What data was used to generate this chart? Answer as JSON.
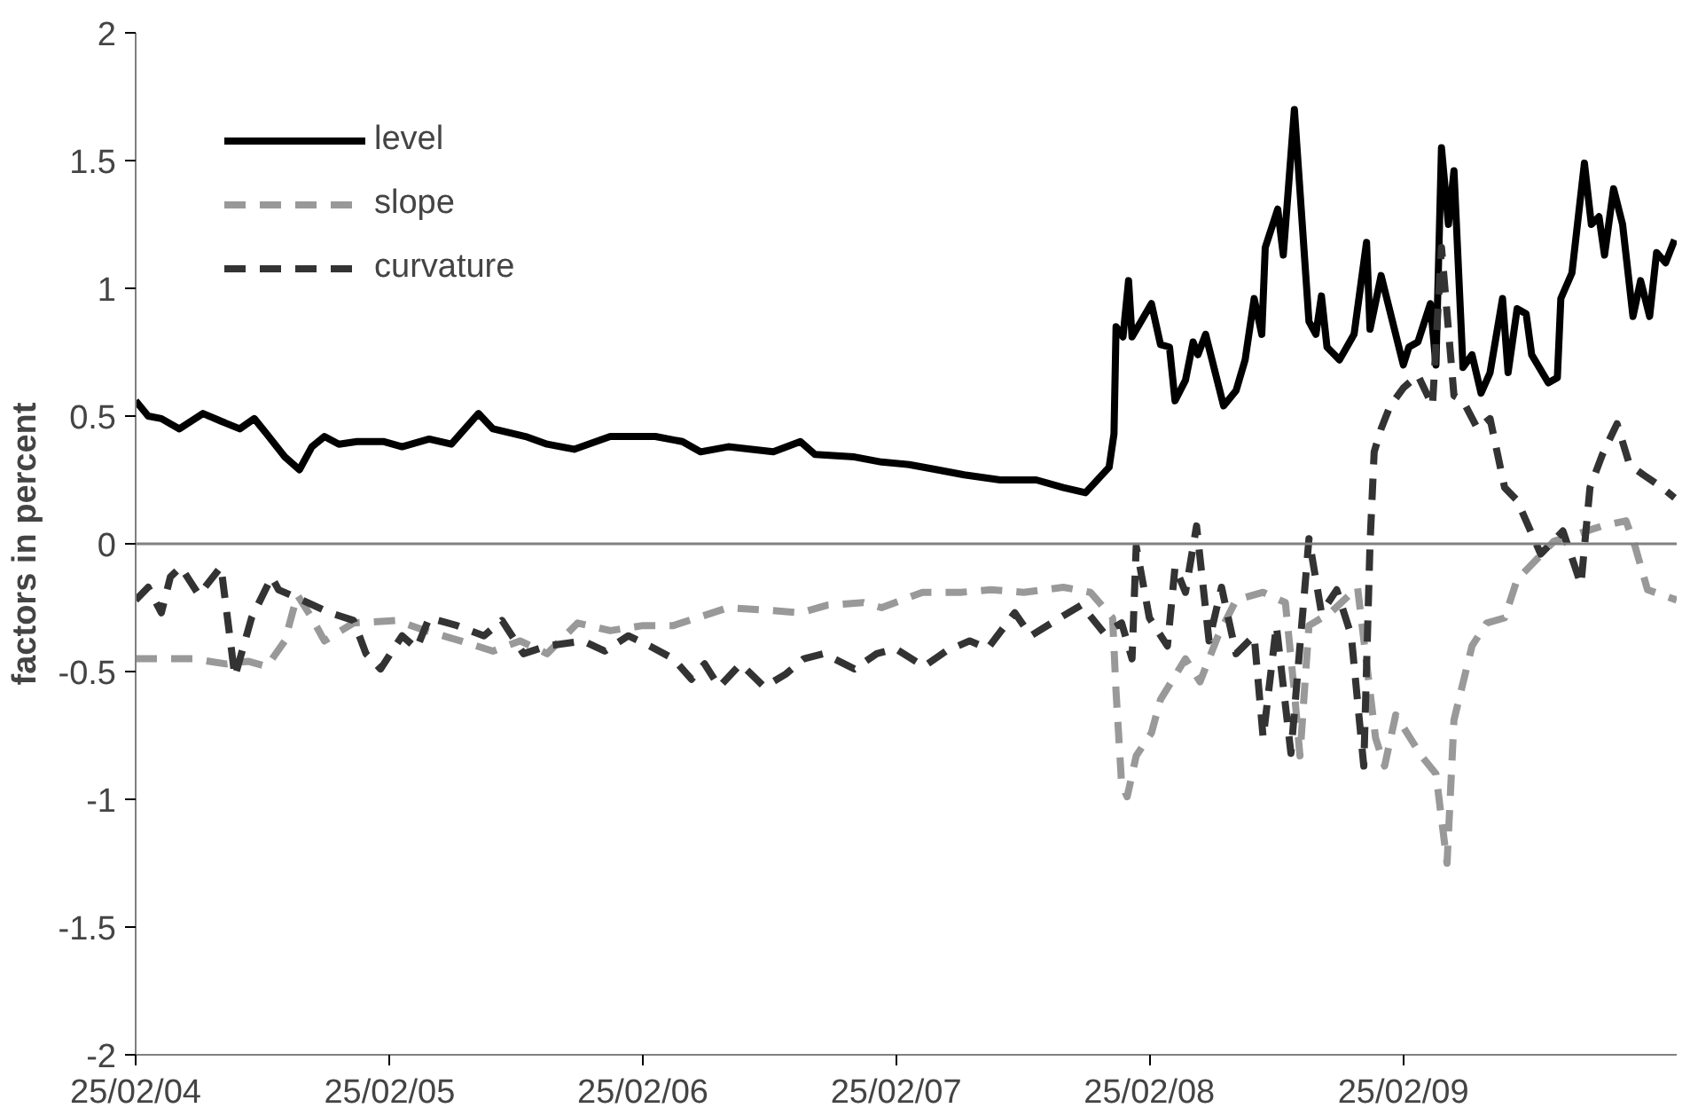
{
  "chart_data": {
    "type": "line",
    "ylabel": "factors in percent",
    "xlim": [
      "2004-02-25",
      "2010-03-26"
    ],
    "ylim": [
      -2,
      2
    ],
    "yticks": [
      -2,
      -1.5,
      -1,
      -0.5,
      0,
      0.5,
      1,
      1.5,
      2
    ],
    "xticks": [
      {
        "value": "2004-02-25",
        "label": "25/02/04"
      },
      {
        "value": "2005-02-25",
        "label": "25/02/05"
      },
      {
        "value": "2006-02-25",
        "label": "25/02/06"
      },
      {
        "value": "2007-02-25",
        "label": "25/02/07"
      },
      {
        "value": "2008-02-25",
        "label": "25/02/08"
      },
      {
        "value": "2009-02-25",
        "label": "25/02/09"
      }
    ],
    "grid": false,
    "legend": "top left",
    "marker": "none",
    "ref_lines": [
      {
        "axis": "y",
        "value": 0,
        "color": "#808080",
        "line_style": "solid"
      }
    ],
    "series": [
      {
        "name": "level",
        "color": "#000000",
        "line_style": "solid",
        "x": [
          "2004-02-25",
          "2004-03-14",
          "2004-04-02",
          "2004-04-28",
          "2004-06-01",
          "2004-06-27",
          "2004-07-24",
          "2004-08-14",
          "2004-09-01",
          "2004-09-27",
          "2004-10-18",
          "2004-11-05",
          "2004-11-23",
          "2004-12-14",
          "2005-01-09",
          "2005-02-17",
          "2005-03-15",
          "2005-04-23",
          "2005-05-25",
          "2005-07-03",
          "2005-07-24",
          "2005-09-09",
          "2005-10-10",
          "2005-11-18",
          "2006-01-09",
          "2006-03-15",
          "2006-04-23",
          "2006-05-19",
          "2006-06-28",
          "2006-09-01",
          "2006-10-10",
          "2006-10-31",
          "2006-12-27",
          "2007-02-04",
          "2007-03-16",
          "2007-04-25",
          "2007-06-03",
          "2007-07-25",
          "2007-09-15",
          "2007-10-24",
          "2007-11-25",
          "2007-12-29",
          "2008-01-05",
          "2008-01-08",
          "2008-01-18",
          "2008-01-26",
          "2008-01-31",
          "2008-02-28",
          "2008-03-12",
          "2008-03-25",
          "2008-04-02",
          "2008-04-17",
          "2008-04-28",
          "2008-05-05",
          "2008-05-16",
          "2008-06-11",
          "2008-06-29",
          "2008-07-12",
          "2008-07-25",
          "2008-08-05",
          "2008-08-10",
          "2008-08-28",
          "2008-09-05",
          "2008-09-21",
          "2008-10-12",
          "2008-10-22",
          "2008-10-30",
          "2008-11-07",
          "2008-11-25",
          "2008-12-16",
          "2009-01-03",
          "2009-01-08",
          "2009-01-24",
          "2009-02-03",
          "2009-02-25",
          "2009-03-05",
          "2009-03-18",
          "2009-04-05",
          "2009-04-13",
          "2009-04-21",
          "2009-05-01",
          "2009-05-09",
          "2009-05-22",
          "2009-06-04",
          "2009-06-17",
          "2009-06-30",
          "2009-07-18",
          "2009-07-26",
          "2009-08-08",
          "2009-08-21",
          "2009-08-29",
          "2009-09-22",
          "2009-10-05",
          "2009-10-10",
          "2009-10-26",
          "2009-11-13",
          "2009-11-23",
          "2009-12-04",
          "2009-12-12",
          "2009-12-25",
          "2010-01-07",
          "2010-01-22",
          "2010-02-02",
          "2010-02-15",
          "2010-02-25",
          "2010-03-10",
          "2010-03-23"
        ],
        "values": [
          0.56,
          0.5,
          0.49,
          0.45,
          0.51,
          0.48,
          0.45,
          0.49,
          0.43,
          0.34,
          0.29,
          0.38,
          0.42,
          0.39,
          0.4,
          0.4,
          0.38,
          0.41,
          0.39,
          0.51,
          0.45,
          0.42,
          0.39,
          0.37,
          0.42,
          0.42,
          0.4,
          0.36,
          0.38,
          0.36,
          0.4,
          0.35,
          0.34,
          0.32,
          0.31,
          0.29,
          0.27,
          0.25,
          0.25,
          0.22,
          0.2,
          0.3,
          0.43,
          0.85,
          0.81,
          1.03,
          0.81,
          0.94,
          0.78,
          0.77,
          0.56,
          0.64,
          0.79,
          0.74,
          0.82,
          0.54,
          0.6,
          0.72,
          0.96,
          0.82,
          1.16,
          1.31,
          1.13,
          1.7,
          0.87,
          0.82,
          0.97,
          0.77,
          0.72,
          0.82,
          1.18,
          0.84,
          1.05,
          0.94,
          0.7,
          0.77,
          0.79,
          0.94,
          0.7,
          1.55,
          1.25,
          1.46,
          0.69,
          0.74,
          0.59,
          0.67,
          0.96,
          0.67,
          0.92,
          0.9,
          0.74,
          0.63,
          0.65,
          0.96,
          1.06,
          1.49,
          1.25,
          1.28,
          1.13,
          1.39,
          1.25,
          0.89,
          1.03,
          0.89,
          1.14,
          1.1,
          1.19
        ]
      },
      {
        "name": "slope",
        "color": "#999999",
        "line_style": "dashed",
        "x": [
          "2004-02-25",
          "2004-04-09",
          "2004-05-18",
          "2004-07-04",
          "2004-08-05",
          "2004-09-01",
          "2004-09-27",
          "2004-10-15",
          "2004-11-05",
          "2004-11-23",
          "2005-01-04",
          "2005-03-07",
          "2005-04-18",
          "2005-06-07",
          "2005-07-24",
          "2005-09-01",
          "2005-10-10",
          "2005-11-23",
          "2006-01-09",
          "2006-02-25",
          "2006-04-10",
          "2006-06-28",
          "2006-08-24",
          "2006-10-10",
          "2006-11-18",
          "2007-01-09",
          "2007-02-04",
          "2007-04-04",
          "2007-05-29",
          "2007-07-12",
          "2007-08-28",
          "2007-10-24",
          "2007-12-02",
          "2008-01-03",
          "2008-01-08",
          "2008-01-16",
          "2008-01-24",
          "2008-02-06",
          "2008-02-28",
          "2008-03-12",
          "2008-04-17",
          "2008-05-08",
          "2008-06-03",
          "2008-06-29",
          "2008-08-07",
          "2008-09-08",
          "2008-09-21",
          "2008-09-29",
          "2008-10-12",
          "2008-11-12",
          "2008-12-21",
          "2009-01-16",
          "2009-01-29",
          "2009-02-14",
          "2009-03-23",
          "2009-04-13",
          "2009-04-29",
          "2009-05-09",
          "2009-05-17",
          "2009-06-04",
          "2009-06-25",
          "2009-07-21",
          "2009-08-08",
          "2009-09-09",
          "2009-09-30",
          "2009-11-16",
          "2009-12-09",
          "2010-01-12",
          "2010-01-25",
          "2010-02-12",
          "2010-03-26"
        ],
        "values": [
          -0.45,
          -0.45,
          -0.45,
          -0.47,
          -0.46,
          -0.48,
          -0.38,
          -0.2,
          -0.29,
          -0.38,
          -0.31,
          -0.3,
          -0.34,
          -0.38,
          -0.42,
          -0.38,
          -0.43,
          -0.31,
          -0.34,
          -0.32,
          -0.32,
          -0.25,
          -0.26,
          -0.27,
          -0.24,
          -0.23,
          -0.25,
          -0.19,
          -0.19,
          -0.18,
          -0.19,
          -0.17,
          -0.19,
          -0.29,
          -0.58,
          -0.94,
          -0.99,
          -0.83,
          -0.74,
          -0.61,
          -0.45,
          -0.54,
          -0.36,
          -0.22,
          -0.19,
          -0.23,
          -0.58,
          -0.83,
          -0.32,
          -0.27,
          -0.17,
          -0.76,
          -0.87,
          -0.67,
          -0.83,
          -0.9,
          -1.25,
          -0.69,
          -0.6,
          -0.4,
          -0.31,
          -0.29,
          -0.14,
          -0.05,
          0.01,
          0.05,
          0.07,
          0.09,
          -0.01,
          -0.18,
          -0.22
        ]
      },
      {
        "name": "curvature",
        "color": "#333333",
        "line_style": "dashed",
        "x": [
          "2004-02-25",
          "2004-03-14",
          "2004-04-02",
          "2004-04-15",
          "2004-04-30",
          "2004-05-26",
          "2004-06-27",
          "2004-07-17",
          "2004-08-10",
          "2004-09-08",
          "2004-09-18",
          "2004-10-22",
          "2004-12-01",
          "2005-01-04",
          "2005-01-22",
          "2005-02-12",
          "2005-03-15",
          "2005-04-05",
          "2005-04-23",
          "2005-06-02",
          "2005-07-11",
          "2005-08-06",
          "2005-09-06",
          "2005-10-10",
          "2005-12-01",
          "2006-01-01",
          "2006-02-04",
          "2006-03-07",
          "2006-04-10",
          "2006-05-06",
          "2006-05-25",
          "2006-06-15",
          "2006-07-16",
          "2006-08-19",
          "2006-09-19",
          "2006-10-15",
          "2006-11-13",
          "2006-12-27",
          "2007-01-28",
          "2007-02-24",
          "2007-04-06",
          "2007-05-08",
          "2007-06-11",
          "2007-07-07",
          "2007-08-15",
          "2007-09-07",
          "2007-10-19",
          "2007-11-19",
          "2007-12-22",
          "2008-01-16",
          "2008-01-31",
          "2008-02-06",
          "2008-02-25",
          "2008-03-22",
          "2008-04-02",
          "2008-04-17",
          "2008-05-03",
          "2008-05-21",
          "2008-06-08",
          "2008-06-29",
          "2008-07-25",
          "2008-08-07",
          "2008-08-26",
          "2008-09-16",
          "2008-10-12",
          "2008-10-30",
          "2008-11-21",
          "2008-12-12",
          "2008-12-30",
          "2009-01-08",
          "2009-01-14",
          "2009-01-24",
          "2009-02-06",
          "2009-02-25",
          "2009-03-18",
          "2009-04-08",
          "2009-04-21",
          "2009-05-09",
          "2009-05-22",
          "2009-06-12",
          "2009-06-30",
          "2009-07-21",
          "2009-08-08",
          "2009-09-11",
          "2009-10-13",
          "2009-11-08",
          "2009-11-21",
          "2009-12-09",
          "2009-12-30",
          "2010-01-17",
          "2010-02-06",
          "2010-03-05",
          "2010-03-23"
        ],
        "values": [
          -0.22,
          -0.17,
          -0.27,
          -0.13,
          -0.09,
          -0.2,
          -0.09,
          -0.52,
          -0.29,
          -0.13,
          -0.18,
          -0.22,
          -0.27,
          -0.3,
          -0.43,
          -0.49,
          -0.36,
          -0.41,
          -0.29,
          -0.32,
          -0.36,
          -0.3,
          -0.43,
          -0.4,
          -0.38,
          -0.42,
          -0.36,
          -0.4,
          -0.45,
          -0.53,
          -0.47,
          -0.56,
          -0.47,
          -0.56,
          -0.51,
          -0.45,
          -0.43,
          -0.49,
          -0.43,
          -0.41,
          -0.48,
          -0.42,
          -0.38,
          -0.41,
          -0.27,
          -0.36,
          -0.29,
          -0.24,
          -0.35,
          -0.31,
          -0.45,
          -0.01,
          -0.29,
          -0.4,
          -0.09,
          -0.19,
          0.07,
          -0.38,
          -0.17,
          -0.43,
          -0.36,
          -0.76,
          -0.32,
          -0.82,
          0.02,
          -0.27,
          -0.18,
          -0.36,
          -0.87,
          0.0,
          0.36,
          0.45,
          0.54,
          0.61,
          0.66,
          0.54,
          1.16,
          0.58,
          0.56,
          0.45,
          0.49,
          0.22,
          0.17,
          -0.04,
          0.05,
          -0.16,
          0.22,
          0.35,
          0.47,
          0.31,
          0.27,
          0.22,
          0.18
        ]
      }
    ]
  }
}
